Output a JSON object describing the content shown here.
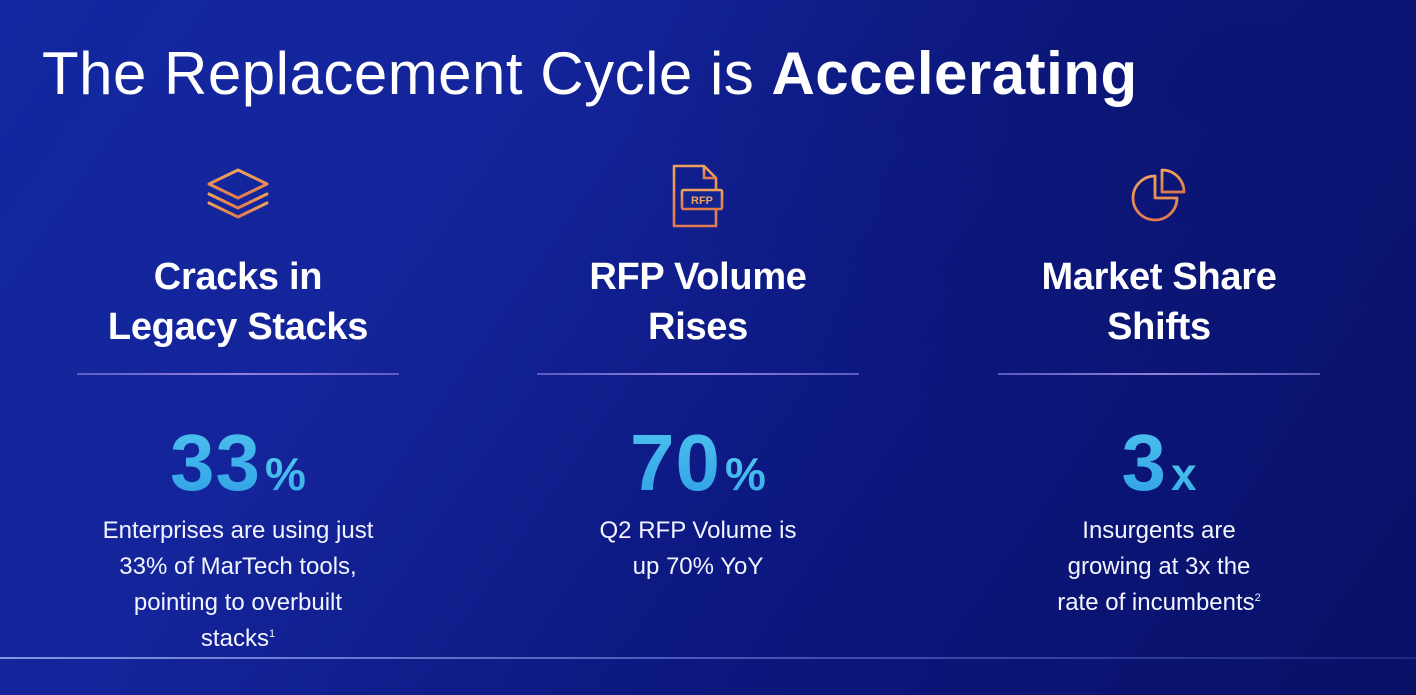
{
  "slide": {
    "title_light": "The Replacement Cycle is ",
    "title_bold": "Accelerating"
  },
  "colors": {
    "accent_icon": "#e8955a",
    "stat_gradient_top": "#4fc4ee",
    "stat_gradient_bottom": "#2e9fe6",
    "background": "#12248f"
  },
  "columns": [
    {
      "icon": "layers-stack-icon",
      "heading_line1": "Cracks in",
      "heading_line2": "Legacy Stacks",
      "stat_value": "33",
      "stat_unit": "%",
      "desc_lines": [
        "Enterprises are using just",
        "33% of MarTech tools,",
        "pointing to overbuilt",
        "stacks"
      ],
      "footnote": "1"
    },
    {
      "icon": "rfp-document-icon",
      "icon_label": "RFP",
      "heading_line1": "RFP Volume",
      "heading_line2": "Rises",
      "stat_value": "70",
      "stat_unit": "%",
      "desc_lines": [
        "Q2 RFP Volume is",
        "up 70% YoY"
      ]
    },
    {
      "icon": "pie-chart-icon",
      "heading_line1": "Market Share",
      "heading_line2": "Shifts",
      "stat_value": "3",
      "stat_unit": "x",
      "desc_lines": [
        "Insurgents are",
        "growing at 3x the",
        "rate of incumbents"
      ],
      "footnote": "2"
    }
  ]
}
